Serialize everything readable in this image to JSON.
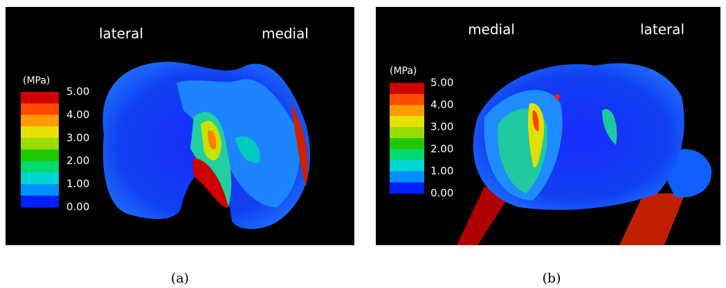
{
  "panels": [
    {
      "labels": [
        "lateral",
        "medial"
      ],
      "unit": "(MPa)",
      "scale": [
        "5.00",
        "4.00",
        "3.00",
        "2.00",
        "1.00",
        "0.00"
      ],
      "caption": "(a)"
    },
    {
      "labels": [
        "medial",
        "lateral"
      ],
      "unit": "(MPa)",
      "scale": [
        "5.00",
        "4.00",
        "3.00",
        "2.00",
        "1.00",
        "0.00"
      ],
      "caption": "(b)"
    }
  ]
}
